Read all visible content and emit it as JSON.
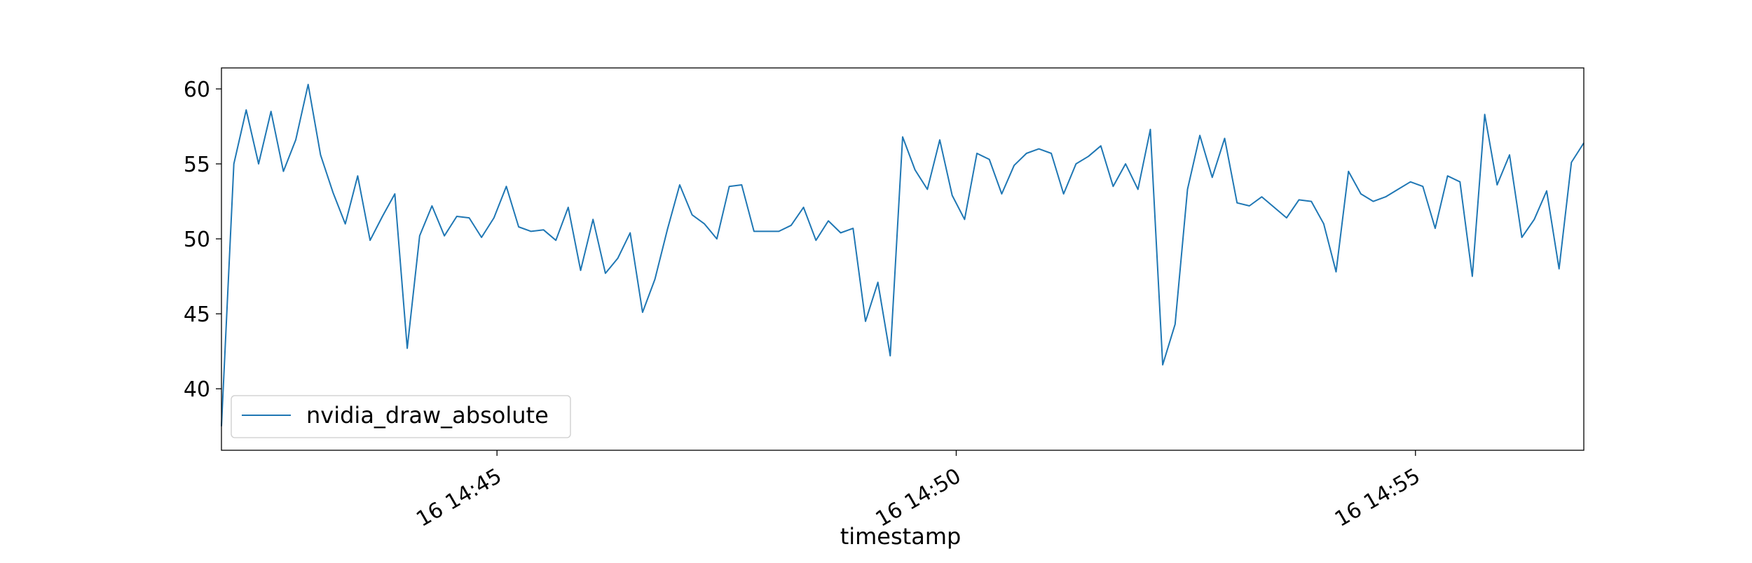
{
  "colors": {
    "line": "#1f77b4",
    "axes": "#000000",
    "background": "#ffffff",
    "legend_border": "#cccccc"
  },
  "chart_data": {
    "type": "line",
    "title": "",
    "xlabel": "timestamp",
    "ylabel": "",
    "x_start": "16 14:42:00",
    "x_end": "16 14:56:50",
    "xlim_minutes": [
      42.0,
      56.833
    ],
    "ylim": [
      35.9,
      61.4
    ],
    "grid": false,
    "legend_position": "lower-left",
    "xticks": [
      {
        "minute": 45,
        "label": "16 14:45"
      },
      {
        "minute": 50,
        "label": "16 14:50"
      },
      {
        "minute": 55,
        "label": "16 14:55"
      }
    ],
    "yticks": [
      40,
      45,
      50,
      55,
      60
    ],
    "series": [
      {
        "name": "nvidia_draw_absolute",
        "values": [
          37.5,
          55.0,
          58.6,
          55.0,
          58.5,
          54.5,
          56.6,
          60.3,
          55.6,
          53.1,
          51.0,
          54.2,
          49.9,
          51.5,
          53.0,
          42.7,
          50.2,
          52.2,
          50.2,
          51.5,
          51.4,
          50.1,
          51.4,
          53.5,
          50.8,
          50.5,
          50.6,
          49.9,
          52.1,
          47.9,
          51.3,
          47.7,
          48.7,
          50.4,
          45.1,
          47.3,
          50.6,
          53.6,
          51.6,
          51.0,
          50.0,
          53.5,
          53.6,
          50.5,
          50.5,
          50.5,
          50.9,
          52.1,
          49.9,
          51.2,
          50.4,
          50.7,
          44.5,
          47.1,
          42.2,
          56.8,
          54.6,
          53.3,
          56.6,
          52.9,
          51.3,
          55.7,
          55.3,
          53.0,
          54.9,
          55.7,
          56.0,
          55.7,
          53.0,
          55.0,
          55.5,
          56.2,
          53.5,
          55.0,
          53.3,
          57.3,
          41.6,
          44.3,
          53.3,
          56.9,
          54.1,
          56.7,
          52.4,
          52.2,
          52.8,
          52.1,
          51.4,
          52.6,
          52.5,
          51.0,
          47.8,
          54.5,
          53.0,
          52.5,
          52.8,
          53.3,
          53.8,
          53.5,
          50.7,
          54.2,
          53.8,
          47.5,
          58.3,
          53.6,
          55.6,
          50.1,
          51.3,
          53.2,
          48.0,
          55.1,
          56.4
        ]
      }
    ]
  }
}
